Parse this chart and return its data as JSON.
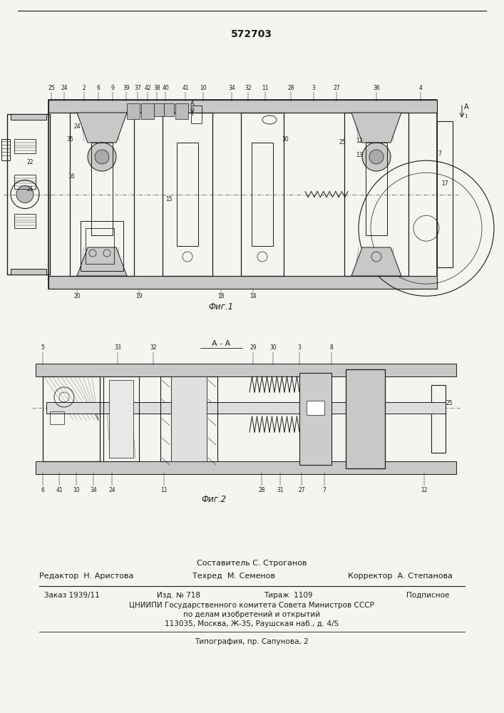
{
  "patent_number": "572703",
  "fig1_label": "Фиг.1",
  "fig2_label": "Фиг.2",
  "section_label": "А - А",
  "compiler_line": "Составитель С. Строганов",
  "editor_line": "Редактор  Н. Аристова",
  "techred_line": "Техред  М. Семенов",
  "corrector_line": "Корректор  А. Степанова",
  "order_line": "Заказ 1939/11",
  "izd_line": "Изд. № 718",
  "tirazh_line": "Тираж  1109",
  "podpisnoe_line": "Подписное",
  "tsniip_line": "ЦНИИПИ Государственного комитета Совета Министров СССР",
  "po_delam_line": "по делам изобретений и открытий",
  "address_line": "113035, Москва, Ж-35, Раушская наб., д. 4/5",
  "typography_line": "Типография, пр. Сапунова, 2",
  "bg_color": "#f5f5f0",
  "line_color": "#1a1a1a",
  "gray_fill": "#c8c8c8",
  "dark_fill": "#888888",
  "hatch_color": "#444444"
}
